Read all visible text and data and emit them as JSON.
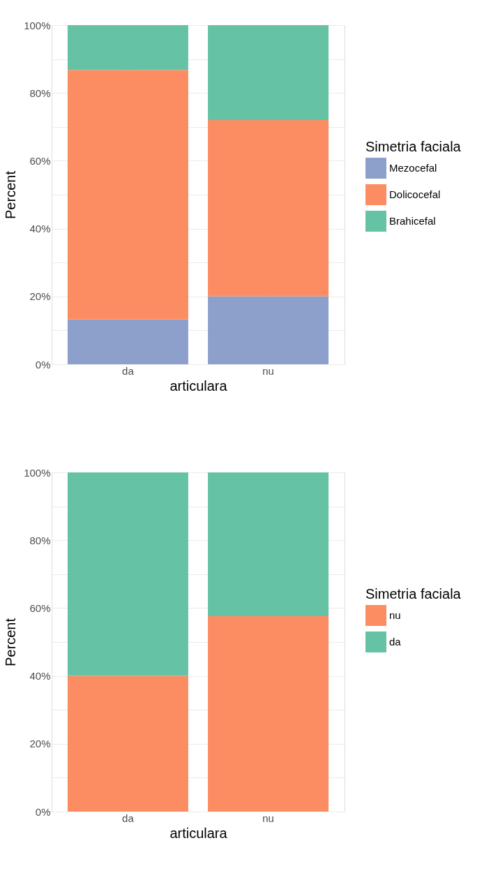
{
  "chart_data": [
    {
      "type": "bar",
      "stacked": true,
      "xlabel": "articulara",
      "ylabel": "Percent",
      "legend_title": "Simetria faciala",
      "legend": "right",
      "grid": true,
      "categories": [
        "da",
        "nu"
      ],
      "series": [
        {
          "name": "Mezocefal",
          "color": "#8da0cb",
          "values": [
            13.2,
            20
          ]
        },
        {
          "name": "Dolicocefal",
          "color": "#fc8d62",
          "values": [
            73.6,
            52
          ]
        },
        {
          "name": "Brahicefal",
          "color": "#66c2a5",
          "values": [
            13.2,
            28
          ]
        }
      ],
      "ylim": [
        0,
        100
      ],
      "yticks": [
        {
          "value": 0,
          "label": "0%"
        },
        {
          "value": 10,
          "label": null
        },
        {
          "value": 20,
          "label": "20%"
        },
        {
          "value": 30,
          "label": null
        },
        {
          "value": 40,
          "label": "40%"
        },
        {
          "value": 50,
          "label": null
        },
        {
          "value": 60,
          "label": "60%"
        },
        {
          "value": 70,
          "label": null
        },
        {
          "value": 80,
          "label": "80%"
        },
        {
          "value": 90,
          "label": null
        },
        {
          "value": 100,
          "label": "100%"
        }
      ]
    },
    {
      "type": "bar",
      "stacked": true,
      "xlabel": "articulara",
      "ylabel": "Percent",
      "legend_title": "Simetria faciala",
      "legend": "right",
      "grid": true,
      "categories": [
        "da",
        "nu"
      ],
      "series": [
        {
          "name": "nu",
          "color": "#fc8d62",
          "values": [
            40,
            57.6
          ]
        },
        {
          "name": "da",
          "color": "#66c2a5",
          "values": [
            60,
            42.4
          ]
        }
      ],
      "ylim": [
        0,
        100
      ],
      "yticks": [
        {
          "value": 0,
          "label": "0%"
        },
        {
          "value": 10,
          "label": null
        },
        {
          "value": 20,
          "label": "20%"
        },
        {
          "value": 30,
          "label": null
        },
        {
          "value": 40,
          "label": "40%"
        },
        {
          "value": 50,
          "label": null
        },
        {
          "value": 60,
          "label": "60%"
        },
        {
          "value": 70,
          "label": null
        },
        {
          "value": 80,
          "label": "80%"
        },
        {
          "value": 90,
          "label": null
        },
        {
          "value": 100,
          "label": "100%"
        }
      ]
    }
  ]
}
